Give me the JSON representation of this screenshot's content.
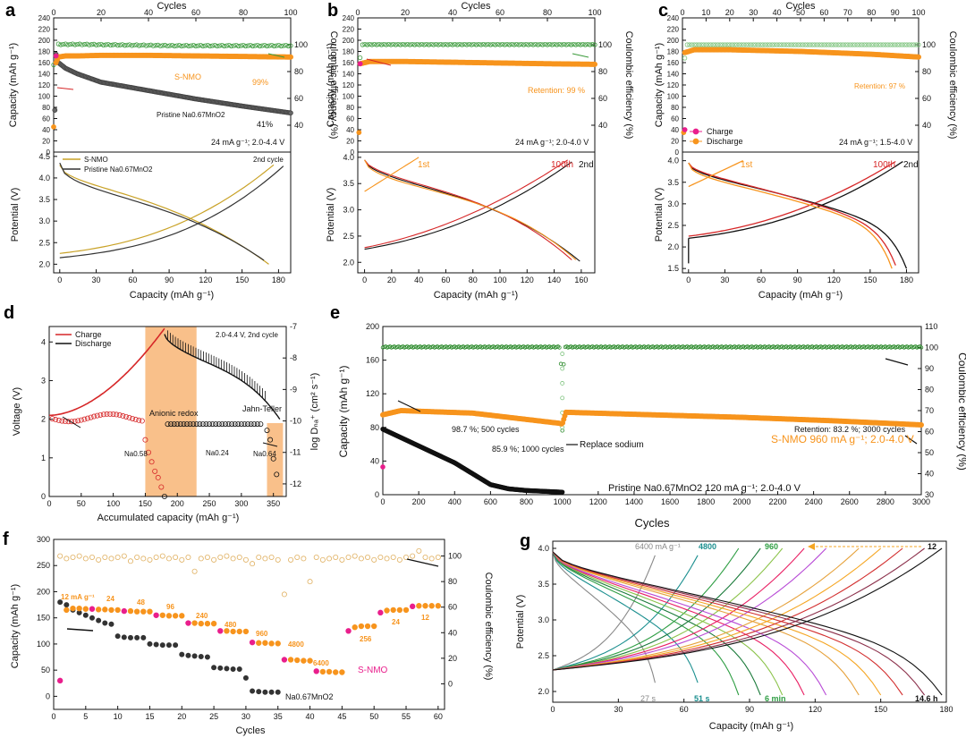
{
  "colors": {
    "snmo": "#f7941d",
    "pristine": "#1a1a1a",
    "ce": "#3a9a3a",
    "charge_red": "#d62728",
    "magenta": "#e91e8c",
    "orange_shade": "#f9c08a"
  },
  "panels": {
    "a": {
      "label": "a"
    },
    "b": {
      "label": "b"
    },
    "c": {
      "label": "c"
    },
    "d": {
      "label": "d"
    },
    "e": {
      "label": "e"
    },
    "f": {
      "label": "f"
    },
    "g": {
      "label": "g"
    }
  },
  "chart_data": [
    {
      "id": "a_top",
      "type": "scatter",
      "xlabel_top": "Cycles",
      "ylabel": "Capacity (mAh g⁻¹)",
      "ylabel_right": "Coulombic efficiency (%)",
      "xlim": [
        0,
        100
      ],
      "ylim": [
        0,
        240
      ],
      "ylim_right": [
        20,
        120
      ],
      "x_ticks": [
        "0",
        "20",
        "40",
        "60",
        "80",
        "100"
      ],
      "y_ticks": [
        "0",
        "20",
        "40",
        "60",
        "80",
        "100",
        "120",
        "140",
        "160",
        "180",
        "200",
        "220",
        "240"
      ],
      "y_ticks_right": [
        "40",
        "60",
        "80",
        "100"
      ],
      "series": [
        {
          "name": "S-NMO",
          "x": [
            0,
            1,
            2,
            5,
            10,
            20,
            40,
            60,
            80,
            100
          ],
          "y": [
            45,
            160,
            170,
            172,
            172,
            173,
            173,
            172,
            171,
            170
          ]
        },
        {
          "name": "Pristine Na0.67MnO2",
          "x": [
            0,
            1,
            2,
            5,
            10,
            20,
            40,
            60,
            80,
            100
          ],
          "y": [
            75,
            175,
            160,
            150,
            140,
            125,
            110,
            95,
            82,
            70
          ]
        },
        {
          "name": "CE",
          "x": [
            0,
            2,
            10,
            50,
            100
          ],
          "y": [
            85,
            100,
            100,
            99,
            99
          ]
        }
      ],
      "annotations": [
        "S-NMO",
        "99%",
        "Pristine Na0.67MnO2",
        "41%",
        "24 mA g⁻¹; 2.0-4.4 V"
      ]
    },
    {
      "id": "a_bottom",
      "type": "line",
      "xlabel": "Capacity (mAh g⁻¹)",
      "ylabel": "Potential (V)",
      "xlim": [
        -5,
        190
      ],
      "ylim": [
        1.8,
        4.6
      ],
      "x_ticks": [
        "0",
        "30",
        "60",
        "90",
        "120",
        "150",
        "180"
      ],
      "y_ticks": [
        "2.0",
        "2.5",
        "3.0",
        "3.5",
        "4.0",
        "4.5"
      ],
      "legend": [
        "S-NMO",
        "Pristine Na0.67MnO2"
      ],
      "annotations": [
        "2nd cycle"
      ]
    },
    {
      "id": "b_top",
      "type": "scatter",
      "xlabel_top": "Cycles",
      "ylabel": "Capacity (mAh g⁻¹)",
      "ylabel_right": "Coulombic efficiency (%)",
      "xlim": [
        0,
        100
      ],
      "ylim": [
        0,
        240
      ],
      "ylim_right": [
        20,
        120
      ],
      "x_ticks": [
        "0",
        "20",
        "40",
        "60",
        "80",
        "100"
      ],
      "y_ticks": [
        "0",
        "20",
        "40",
        "60",
        "80",
        "100",
        "120",
        "140",
        "160",
        "180",
        "200",
        "220",
        "240"
      ],
      "y_ticks_right": [
        "40",
        "60",
        "80",
        "100"
      ],
      "series": [
        {
          "name": "S-NMO",
          "x": [
            0,
            1,
            5,
            20,
            50,
            80,
            100
          ],
          "y": [
            35,
            158,
            162,
            162,
            160,
            158,
            157
          ]
        },
        {
          "name": "CE",
          "x": [
            0,
            2,
            50,
            100
          ],
          "y": [
            80,
            100,
            100,
            100
          ]
        }
      ],
      "annotations": [
        "Retention: 99 %",
        "24 mA g⁻¹; 2.0-4.0 V"
      ]
    },
    {
      "id": "b_bottom",
      "type": "line",
      "xlabel": "Capacity (mAh g⁻¹)",
      "ylabel": "Potential (V)",
      "xlim": [
        -5,
        170
      ],
      "ylim": [
        1.8,
        4.1
      ],
      "x_ticks": [
        "0",
        "20",
        "40",
        "60",
        "80",
        "100",
        "120",
        "140",
        "160"
      ],
      "y_ticks": [
        "2.0",
        "2.5",
        "3.0",
        "3.5",
        "4.0"
      ],
      "annotations": [
        "1st",
        "100th",
        "2nd"
      ]
    },
    {
      "id": "c_top",
      "type": "scatter",
      "xlabel_top": "Cycles",
      "ylabel": "Capacity (mAh g⁻¹)",
      "ylabel_right": "Coulombic efficiency (%)",
      "xlim": [
        0,
        100
      ],
      "ylim": [
        0,
        240
      ],
      "ylim_right": [
        20,
        120
      ],
      "x_ticks": [
        "0",
        "10",
        "20",
        "30",
        "40",
        "50",
        "60",
        "70",
        "80",
        "90",
        "100"
      ],
      "y_ticks": [
        "0",
        "20",
        "40",
        "60",
        "80",
        "100",
        "120",
        "140",
        "160",
        "180",
        "200",
        "220",
        "240"
      ],
      "y_ticks_right": [
        "40",
        "60",
        "80",
        "100"
      ],
      "series": [
        {
          "name": "Charge",
          "x": [
            0,
            1
          ],
          "y": [
            40,
            175
          ]
        },
        {
          "name": "Discharge",
          "x": [
            0,
            1,
            5,
            20,
            50,
            80,
            100
          ],
          "y": [
            35,
            178,
            183,
            183,
            180,
            175,
            170
          ]
        },
        {
          "name": "CE",
          "x": [
            0,
            2,
            50,
            100
          ],
          "y": [
            80,
            100,
            100,
            100
          ]
        }
      ],
      "annotations": [
        "Retention: 97 %",
        "24 mA g⁻¹; 1.5-4.0 V"
      ]
    },
    {
      "id": "c_bottom",
      "type": "line",
      "xlabel": "Capacity (mAh g⁻¹)",
      "ylabel": "Potential (V)",
      "xlim": [
        -5,
        190
      ],
      "ylim": [
        1.4,
        4.2
      ],
      "x_ticks": [
        "0",
        "30",
        "60",
        "90",
        "120",
        "150",
        "180"
      ],
      "y_ticks": [
        "1.5",
        "2.0",
        "2.5",
        "3.0",
        "3.5",
        "4.0"
      ],
      "annotations": [
        "1st",
        "100th",
        "2nd"
      ]
    },
    {
      "id": "d",
      "type": "line",
      "xlabel": "Accumulated capacity (mAh g⁻¹)",
      "ylabel": "Voltage (V)",
      "ylabel_right": "log Dₙₐ⁺ (cm² s⁻¹)",
      "xlim": [
        0,
        370
      ],
      "ylim": [
        0,
        4.4
      ],
      "ylim_right": [
        -12.4,
        -7
      ],
      "x_ticks": [
        "0",
        "50",
        "100",
        "150",
        "200",
        "250",
        "300",
        "350"
      ],
      "y_ticks": [
        "0",
        "1",
        "2",
        "3",
        "4"
      ],
      "y_ticks_right": [
        "-7",
        "-8",
        "-9",
        "-10",
        "-11",
        "-12"
      ],
      "legend": [
        "Charge",
        "Discharge"
      ],
      "annotations": [
        "2.0-4.4 V, 2nd cycle",
        "Anionic redox",
        "Jahn-Teller",
        "Na0.58",
        "Na0.24",
        "Na0.64"
      ]
    },
    {
      "id": "e",
      "type": "scatter",
      "xlabel": "Cycles",
      "ylabel": "Capacity (mAh g⁻¹)",
      "ylabel_right": "Coulombic efficiency (%)",
      "xlim": [
        0,
        3000
      ],
      "ylim": [
        0,
        200
      ],
      "ylim_right": [
        30,
        110
      ],
      "x_ticks": [
        "0",
        "200",
        "400",
        "600",
        "800",
        "1000",
        "1200",
        "1400",
        "1600",
        "1800",
        "2000",
        "2200",
        "2400",
        "2600",
        "2800",
        "3000"
      ],
      "y_ticks": [
        "0",
        "40",
        "80",
        "120",
        "160",
        "200"
      ],
      "y_ticks_right": [
        "30",
        "40",
        "50",
        "60",
        "70",
        "80",
        "90",
        "100",
        "110"
      ],
      "series": [
        {
          "name": "S-NMO 960 mA g⁻¹; 2.0-4.0 V",
          "x": [
            0,
            100,
            500,
            980,
            1000,
            1020,
            1500,
            2000,
            2500,
            3000
          ],
          "y": [
            95,
            100,
            97,
            85,
            84,
            98,
            95,
            92,
            88,
            83
          ]
        },
        {
          "name": "Pristine Na0.67MnO2 120 mA g⁻¹; 2.0-4.0 V",
          "x": [
            0,
            100,
            200,
            300,
            400,
            500,
            600,
            700,
            800,
            900,
            1000
          ],
          "y": [
            78,
            68,
            58,
            48,
            38,
            25,
            12,
            7,
            5,
            4,
            3
          ]
        },
        {
          "name": "CE",
          "x": [
            0,
            990,
            1000,
            1010,
            3000
          ],
          "y": [
            100,
            100,
            60,
            100,
            100
          ]
        }
      ],
      "annotations": [
        "98.7 %; 500 cycles",
        "85.9 %; 1000 cycles",
        "Replace sodium",
        "Retention: 83.2 %; 3000 cycles",
        "S-NMO 960 mA g⁻¹; 2.0-4.0 V",
        "Pristine Na0.67MnO2 120 mA g⁻¹; 2.0-4.0 V"
      ]
    },
    {
      "id": "f",
      "type": "scatter",
      "xlabel": "Cycles",
      "ylabel": "Capacity (mAh g⁻¹)",
      "ylabel_right": "Coulombic efficiency (%)",
      "xlim": [
        0,
        61
      ],
      "ylim": [
        -25,
        300
      ],
      "ylim_right": [
        -20,
        113
      ],
      "x_ticks": [
        "0",
        "5",
        "10",
        "15",
        "20",
        "25",
        "30",
        "35",
        "40",
        "45",
        "50",
        "55",
        "60"
      ],
      "y_ticks": [
        "0",
        "50",
        "100",
        "150",
        "200",
        "250",
        "300"
      ],
      "y_ticks_right": [
        "0",
        "20",
        "40",
        "60",
        "80",
        "100"
      ],
      "rate_labels": [
        "12 mA g⁻¹",
        "24",
        "48",
        "96",
        "240",
        "480",
        "960",
        "4800",
        "6400",
        "256",
        "24",
        "12"
      ],
      "series": [
        {
          "name": "S-NMO",
          "x": [
            1,
            2,
            3,
            4,
            5,
            6,
            7,
            8,
            9,
            10,
            11,
            12,
            13,
            14,
            15,
            16,
            17,
            18,
            19,
            20,
            21,
            22,
            23,
            24,
            25,
            26,
            27,
            28,
            29,
            30,
            31,
            32,
            33,
            34,
            35,
            36,
            37,
            38,
            39,
            40,
            41,
            42,
            43,
            44,
            45,
            46,
            47,
            48,
            49,
            50,
            51,
            52,
            53,
            54,
            55,
            56,
            57,
            58,
            59,
            60
          ],
          "y": [
            30,
            165,
            168,
            168,
            167,
            167,
            166,
            166,
            165,
            165,
            163,
            163,
            162,
            162,
            162,
            155,
            155,
            154,
            154,
            154,
            140,
            140,
            139,
            139,
            139,
            125,
            125,
            124,
            124,
            124,
            103,
            102,
            102,
            101,
            101,
            70,
            70,
            69,
            68,
            68,
            48,
            47,
            47,
            46,
            46,
            125,
            132,
            134,
            134,
            134,
            160,
            164,
            165,
            165,
            165,
            172,
            173,
            173,
            173,
            173
          ]
        },
        {
          "name": "Na0.67MnO2",
          "x": [
            1,
            2,
            3,
            4,
            5,
            6,
            7,
            8,
            9,
            10,
            11,
            12,
            13,
            14,
            15,
            16,
            17,
            18,
            19,
            20,
            21,
            22,
            23,
            24,
            25,
            26,
            27,
            28,
            29,
            30,
            31,
            32,
            33,
            34,
            35
          ],
          "y": [
            180,
            175,
            165,
            160,
            155,
            150,
            145,
            140,
            138,
            115,
            113,
            112,
            112,
            112,
            100,
            99,
            98,
            98,
            98,
            80,
            78,
            77,
            76,
            75,
            55,
            54,
            53,
            52,
            52,
            35,
            10,
            9,
            8,
            8,
            8
          ]
        }
      ],
      "annotations": [
        "S-NMO",
        "Na0.67MnO2"
      ]
    },
    {
      "id": "g",
      "type": "line",
      "xlabel": "Capacity (mAh g⁻¹)",
      "ylabel": "Potential (V)",
      "xlim": [
        0,
        180
      ],
      "ylim": [
        1.85,
        4.1
      ],
      "x_ticks": [
        "0",
        "30",
        "60",
        "90",
        "120",
        "150",
        "180"
      ],
      "y_ticks": [
        "2.0",
        "2.5",
        "3.0",
        "3.5",
        "4.0"
      ],
      "rate_labels_top": [
        "6400 mA g⁻¹",
        "4800",
        "960",
        "12"
      ],
      "time_labels_bottom": [
        "27 s",
        "51 s",
        "6 min",
        "14.6 h"
      ],
      "discharge_capacities": [
        48,
        68,
        85,
        95,
        105,
        115,
        125,
        140,
        150,
        160,
        170,
        178
      ]
    }
  ]
}
